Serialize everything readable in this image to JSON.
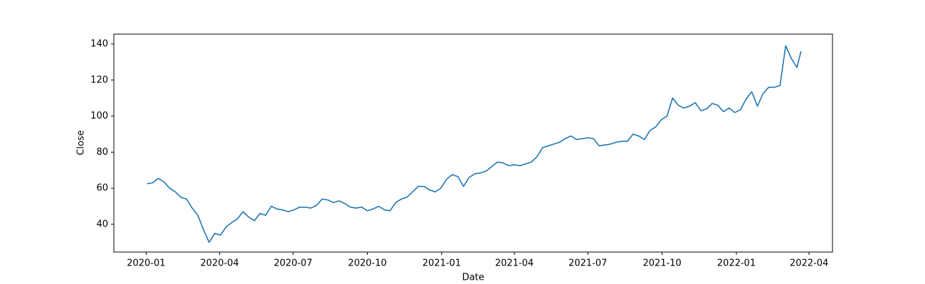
{
  "chart_data": {
    "type": "line",
    "xlabel": "Date",
    "ylabel": "Close",
    "color": "#1f77b4",
    "x": [
      "2020-01-02",
      "2020-01-09",
      "2020-01-16",
      "2020-01-23",
      "2020-01-30",
      "2020-02-06",
      "2020-02-13",
      "2020-02-20",
      "2020-02-27",
      "2020-03-05",
      "2020-03-12",
      "2020-03-19",
      "2020-03-26",
      "2020-04-02",
      "2020-04-09",
      "2020-04-16",
      "2020-04-23",
      "2020-04-30",
      "2020-05-07",
      "2020-05-14",
      "2020-05-21",
      "2020-05-28",
      "2020-06-04",
      "2020-06-11",
      "2020-06-18",
      "2020-06-25",
      "2020-07-02",
      "2020-07-09",
      "2020-07-16",
      "2020-07-23",
      "2020-07-30",
      "2020-08-06",
      "2020-08-13",
      "2020-08-20",
      "2020-08-27",
      "2020-09-03",
      "2020-09-10",
      "2020-09-17",
      "2020-09-24",
      "2020-10-01",
      "2020-10-08",
      "2020-10-15",
      "2020-10-22",
      "2020-10-29",
      "2020-11-05",
      "2020-11-12",
      "2020-11-19",
      "2020-11-26",
      "2020-12-03",
      "2020-12-10",
      "2020-12-17",
      "2020-12-24",
      "2020-12-31",
      "2021-01-07",
      "2021-01-14",
      "2021-01-21",
      "2021-01-28",
      "2021-02-04",
      "2021-02-11",
      "2021-02-18",
      "2021-02-25",
      "2021-03-04",
      "2021-03-11",
      "2021-03-18",
      "2021-03-25",
      "2021-04-01",
      "2021-04-08",
      "2021-04-15",
      "2021-04-22",
      "2021-04-29",
      "2021-05-06",
      "2021-05-13",
      "2021-05-20",
      "2021-05-27",
      "2021-06-03",
      "2021-06-10",
      "2021-06-17",
      "2021-06-24",
      "2021-07-01",
      "2021-07-08",
      "2021-07-15",
      "2021-07-22",
      "2021-07-29",
      "2021-08-05",
      "2021-08-12",
      "2021-08-19",
      "2021-08-26",
      "2021-09-02",
      "2021-09-09",
      "2021-09-16",
      "2021-09-23",
      "2021-09-30",
      "2021-10-07",
      "2021-10-14",
      "2021-10-21",
      "2021-10-28",
      "2021-11-04",
      "2021-11-11",
      "2021-11-18",
      "2021-11-25",
      "2021-12-02",
      "2021-12-09",
      "2021-12-16",
      "2021-12-23",
      "2021-12-30",
      "2022-01-06",
      "2022-01-13",
      "2022-01-20",
      "2022-01-27",
      "2022-02-03",
      "2022-02-10",
      "2022-02-17",
      "2022-02-24",
      "2022-03-03",
      "2022-03-10",
      "2022-03-17",
      "2022-03-22"
    ],
    "values": [
      62.5,
      63,
      65.5,
      63.5,
      60,
      58,
      55,
      54,
      49,
      45,
      37,
      30,
      35,
      34,
      38.5,
      41,
      43,
      47,
      44,
      42,
      46,
      45,
      50,
      48.5,
      48,
      47,
      48,
      49.5,
      49.5,
      49,
      50.5,
      54,
      53.5,
      52,
      53,
      51.5,
      49.5,
      49,
      49.5,
      47.5,
      48.5,
      50,
      48,
      47.5,
      52,
      54,
      55,
      58,
      61,
      61,
      59,
      58,
      60,
      65,
      67.5,
      66.5,
      61,
      66,
      68,
      68.5,
      69.5,
      72,
      74.5,
      74,
      72.5,
      73,
      72.5,
      73.5,
      74.5,
      77.5,
      82.5,
      83.5,
      84.5,
      85.5,
      87.5,
      89,
      87,
      87.5,
      88,
      87.5,
      83.5,
      84,
      84.5,
      85.5,
      86,
      86,
      90,
      89,
      87,
      92,
      94,
      98,
      100,
      110,
      106,
      104.5,
      105.5,
      107.5,
      103,
      104,
      107,
      106,
      102.5,
      104.5,
      102,
      103.5,
      109.5,
      113.5,
      105.5,
      112.5,
      116,
      116,
      117,
      139,
      132,
      127,
      136
    ],
    "xlim": [
      "2019-11-22",
      "2022-04-30"
    ],
    "xticks": [
      {
        "value": "2020-01-01",
        "label": "2020-01"
      },
      {
        "value": "2020-04-01",
        "label": "2020-04"
      },
      {
        "value": "2020-07-01",
        "label": "2020-07"
      },
      {
        "value": "2020-10-01",
        "label": "2020-10"
      },
      {
        "value": "2021-01-01",
        "label": "2021-01"
      },
      {
        "value": "2021-04-01",
        "label": "2021-04"
      },
      {
        "value": "2021-07-01",
        "label": "2021-07"
      },
      {
        "value": "2021-10-01",
        "label": "2021-10"
      },
      {
        "value": "2022-01-01",
        "label": "2022-01"
      },
      {
        "value": "2022-04-01",
        "label": "2022-04"
      }
    ],
    "ylim": [
      24.6,
      145.5
    ],
    "yticks": [
      40,
      60,
      80,
      100,
      120,
      140
    ]
  }
}
